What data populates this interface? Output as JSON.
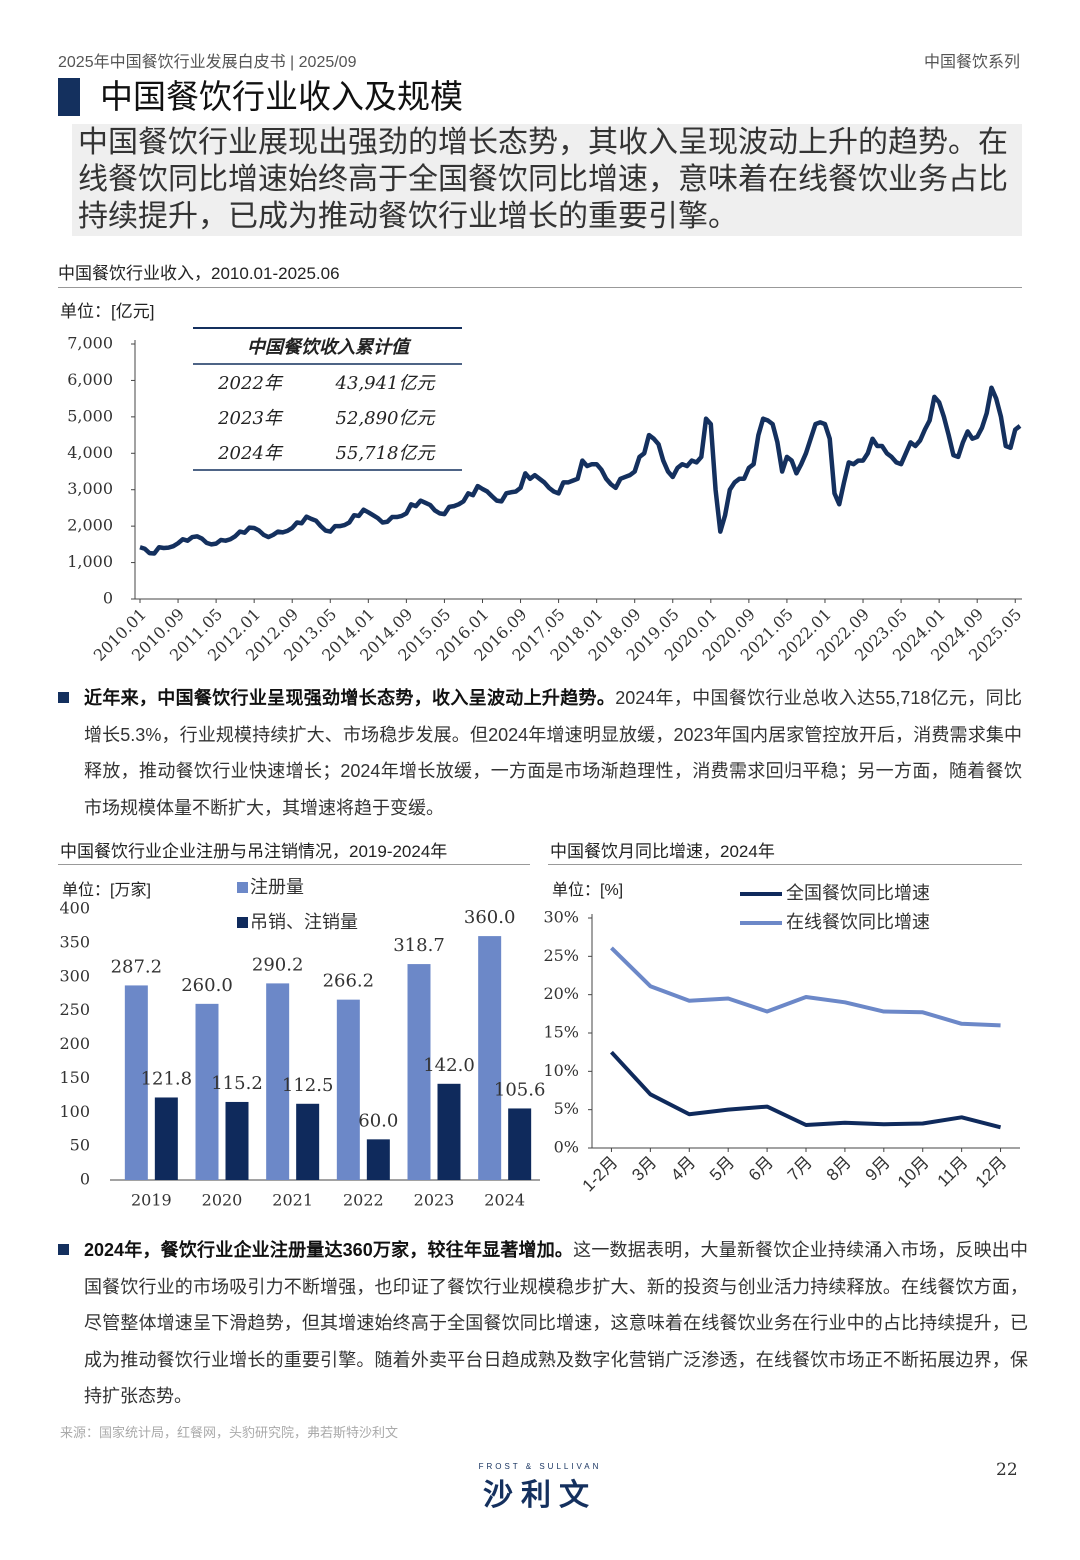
{
  "header": {
    "left": "2025年中国餐饮行业发展白皮书 | 2025/09",
    "right": "中国餐饮系列"
  },
  "section_title": "中国餐饮行业收入及规模",
  "summary": "中国餐饮行业展现出强劲的增长态势，其收入呈现波动上升的趋势。在线餐饮同比增速始终高于全国餐饮同比增速，意味着在线餐饮业务占比持续提升，已成为推动餐饮行业增长的重要引擎。",
  "revenue_table": {
    "title": "中国餐饮收入累计值",
    "rows": [
      [
        "2022年",
        "43,941亿元"
      ],
      [
        "2023年",
        "52,890亿元"
      ],
      [
        "2024年",
        "55,718亿元"
      ]
    ]
  },
  "chart_data": [
    {
      "type": "line",
      "title": "中国餐饮行业收入，2010.01-2025.06",
      "unit": "单位：[亿元]",
      "color": "#14305e",
      "categories": [
        "2010.01",
        null,
        null,
        null,
        null,
        null,
        null,
        null,
        "2010.09",
        null,
        null,
        null,
        null,
        null,
        null,
        null,
        "2011.05",
        null,
        null,
        null,
        null,
        null,
        null,
        null,
        "2012.01",
        null,
        null,
        null,
        null,
        null,
        null,
        null,
        "2012.09",
        null,
        null,
        null,
        null,
        null,
        null,
        null,
        "2013.05",
        null,
        null,
        null,
        null,
        null,
        null,
        null,
        "2014.01",
        null,
        null,
        null,
        null,
        null,
        null,
        null,
        "2014.09",
        null,
        null,
        null,
        null,
        null,
        null,
        null,
        "2015.05",
        null,
        null,
        null,
        null,
        null,
        null,
        null,
        "2016.01",
        null,
        null,
        null,
        null,
        null,
        null,
        null,
        "2016.09",
        null,
        null,
        null,
        null,
        null,
        null,
        null,
        "2017.05",
        null,
        null,
        null,
        null,
        null,
        null,
        null,
        "2018.01",
        null,
        null,
        null,
        null,
        null,
        null,
        null,
        "2018.09",
        null,
        null,
        null,
        null,
        null,
        null,
        null,
        "2019.05",
        null,
        null,
        null,
        null,
        null,
        null,
        null,
        "2020.01",
        null,
        null,
        null,
        null,
        null,
        null,
        null,
        "2020.09",
        null,
        null,
        null,
        null,
        null,
        null,
        null,
        "2021.05",
        null,
        null,
        null,
        null,
        null,
        null,
        null,
        "2022.01",
        null,
        null,
        null,
        null,
        null,
        null,
        null,
        "2022.09",
        null,
        null,
        null,
        null,
        null,
        null,
        null,
        "2023.05",
        null,
        null,
        null,
        null,
        null,
        null,
        null,
        "2024.01",
        null,
        null,
        null,
        null,
        null,
        null,
        null,
        "2024.09",
        null,
        null,
        null,
        null,
        null,
        null,
        null,
        "2025.05",
        null
      ],
      "values": [
        1420,
        1380,
        1260,
        1250,
        1420,
        1400,
        1410,
        1450,
        1530,
        1640,
        1600,
        1700,
        1720,
        1660,
        1540,
        1500,
        1520,
        1620,
        1600,
        1640,
        1720,
        1850,
        1820,
        1960,
        1950,
        1880,
        1760,
        1700,
        1760,
        1850,
        1830,
        1870,
        1950,
        2100,
        2080,
        2260,
        2200,
        2150,
        2000,
        1880,
        1850,
        2000,
        2000,
        2030,
        2100,
        2300,
        2280,
        2450,
        2380,
        2300,
        2220,
        2100,
        2120,
        2250,
        2250,
        2280,
        2350,
        2600,
        2550,
        2700,
        2640,
        2580,
        2430,
        2350,
        2330,
        2530,
        2550,
        2600,
        2680,
        2900,
        2850,
        3100,
        3020,
        2950,
        2820,
        2700,
        2680,
        2900,
        2930,
        2950,
        3050,
        3450,
        3300,
        3400,
        3300,
        3200,
        3050,
        2950,
        2900,
        3200,
        3200,
        3250,
        3300,
        3800,
        3650,
        3700,
        3700,
        3550,
        3300,
        3150,
        3050,
        3300,
        3350,
        3400,
        3500,
        3900,
        4000,
        4500,
        4400,
        4250,
        3800,
        3500,
        3350,
        3600,
        3700,
        3650,
        3800,
        3750,
        3900,
        4950,
        4800,
        3000,
        1850,
        2300,
        3000,
        3200,
        3300,
        3300,
        3600,
        3700,
        4500,
        4950,
        4900,
        4800,
        4300,
        3500,
        3900,
        3800,
        3450,
        3700,
        4000,
        4400,
        4800,
        4850,
        4800,
        4400,
        2900,
        2600,
        3200,
        3750,
        3700,
        3800,
        3800,
        4000,
        4400,
        4200,
        4200,
        4000,
        3900,
        3750,
        3700,
        4000,
        4300,
        4200,
        4350,
        4650,
        4900,
        5550,
        5400,
        5000,
        4500,
        3950,
        3900,
        4300,
        4600,
        4400,
        4450,
        4700,
        5100,
        5800,
        5500,
        5000,
        4200,
        4150,
        4650,
        4750
      ],
      "ylim": [
        0,
        7000
      ],
      "yticks": [
        0,
        {
          "value": 1000,
          "label": "1,000"
        },
        {
          "value": 2000,
          "label": "2,000"
        },
        {
          "value": 3000,
          "label": "3,000"
        },
        {
          "value": 4000,
          "label": "4,000"
        },
        {
          "value": 5000,
          "label": "5,000"
        },
        {
          "value": 6000,
          "label": "6,000"
        },
        {
          "value": 7000,
          "label": "7,000"
        }
      ],
      "grid": false
    },
    {
      "type": "bar",
      "title": "中国餐饮行业企业注册与吊注销情况，2019-2024年",
      "unit": "单位：[万家]",
      "categories": [
        "2019",
        "2020",
        "2021",
        "2022",
        "2023",
        "2024"
      ],
      "series": [
        {
          "name": "注册量",
          "color": "#6c88c8",
          "values": [
            287.2,
            260.0,
            290.2,
            266.2,
            318.7,
            360.0
          ],
          "value_labels": [
            "287.2",
            "260.0",
            "290.2",
            "266.2",
            "318.7",
            "360.0"
          ]
        },
        {
          "name": "吊销、注销量",
          "color": "#0f2a5c",
          "values": [
            121.8,
            115.2,
            112.5,
            60.0,
            142.0,
            105.6
          ],
          "value_labels": [
            "121.8",
            "115.2",
            "112.5",
            "60.0",
            "142.0",
            "105.6"
          ]
        }
      ],
      "ylim": [
        0,
        400
      ],
      "yticks": [
        0,
        50,
        100,
        150,
        200,
        250,
        300,
        350,
        400
      ],
      "grid": false,
      "legend": "top"
    },
    {
      "type": "line",
      "title": "中国餐饮月同比增速，2024年",
      "unit": "单位：[%]",
      "categories": [
        "1-2月",
        "3月",
        "4月",
        "5月",
        "6月",
        "7月",
        "8月",
        "9月",
        "10月",
        "11月",
        "12月"
      ],
      "series": [
        {
          "name": "全国餐饮同比增速",
          "color": "#0f2a5c",
          "values": [
            12.5,
            7.0,
            4.4,
            5.0,
            5.4,
            3.0,
            3.3,
            3.1,
            3.2,
            4.0,
            2.7
          ]
        },
        {
          "name": "在线餐饮同比增速",
          "color": "#6c88c8",
          "values": [
            26.1,
            21.1,
            19.2,
            19.5,
            17.8,
            19.7,
            19.0,
            17.8,
            17.7,
            16.2,
            16.0
          ]
        }
      ],
      "ylim": [
        0,
        30
      ],
      "yticks": [
        {
          "value": 0,
          "label": "0%"
        },
        {
          "value": 5,
          "label": "5%"
        },
        {
          "value": 10,
          "label": "10%"
        },
        {
          "value": 15,
          "label": "15%"
        },
        {
          "value": 20,
          "label": "20%"
        },
        {
          "value": 25,
          "label": "25%"
        },
        {
          "value": 30,
          "label": "30%"
        }
      ],
      "grid": false,
      "legend": "top"
    }
  ],
  "paragraphs": [
    {
      "bold": "近年来，中国餐饮行业呈现强劲增长态势，收入呈波动上升趋势。",
      "text": "2024年，中国餐饮行业总收入达55,718亿元，同比增长5.3%，行业规模持续扩大、市场稳步发展。但2024年增速明显放缓，2023年国内居家管控放开后，消费需求集中释放，推动餐饮行业快速增长；2024年增长放缓，一方面是市场渐趋理性，消费需求回归平稳；另一方面，随着餐饮市场规模体量不断扩大，其增速将趋于变缓。"
    },
    {
      "bold": "2024年，餐饮行业企业注册量达360万家，较往年显著增加。",
      "text": "这一数据表明，大量新餐饮企业持续涌入市场，反映出中国餐饮行业的市场吸引力不断增强，也印证了餐饮行业规模稳步扩大、新的投资与创业活力持续释放。在线餐饮方面，尽管整体增速呈下滑趋势，但其增速始终高于全国餐饮同比增速，这意味着在线餐饮业务在行业中的占比持续提升，已成为推动餐饮行业增长的重要引擎。随着外卖平台日趋成熟及数字化营销广泛渗透，在线餐饮市场正不断拓展边界，保持扩张态势。"
    }
  ],
  "source": "来源：国家统计局，红餐网，头豹研究院，弗若斯特沙利文",
  "page_number": "22",
  "logo": {
    "top": "FROST & SULLIVAN",
    "text": "沙利文"
  }
}
